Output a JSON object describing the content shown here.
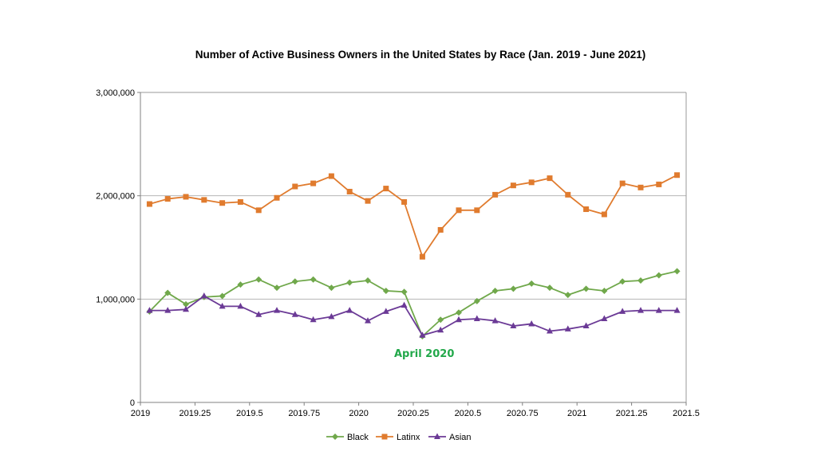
{
  "chart_data": {
    "type": "line",
    "title": "Number of Active Business Owners in the United States by Race (Jan. 2019 - June 2021)",
    "xlim": [
      2019,
      2021.5
    ],
    "ylim": [
      0,
      3000000
    ],
    "xticks": [
      "2019",
      "2019.25",
      "2019.5",
      "2019.75",
      "2020",
      "2020.25",
      "2020.5",
      "2020.75",
      "2021",
      "2021.25",
      "2021.5"
    ],
    "xtick_values": [
      2019,
      2019.25,
      2019.5,
      2019.75,
      2020,
      2020.25,
      2020.5,
      2020.75,
      2021,
      2021.25,
      2021.5
    ],
    "yticks": [
      "0",
      "1,000,000",
      "2,000,000",
      "3,000,000"
    ],
    "ytick_values": [
      0,
      1000000,
      2000000,
      3000000
    ],
    "grid": "horizontal",
    "legend_position": "bottom",
    "x": [
      2019.0417,
      2019.125,
      2019.2083,
      2019.2917,
      2019.375,
      2019.4583,
      2019.5417,
      2019.625,
      2019.7083,
      2019.7917,
      2019.875,
      2019.9583,
      2020.0417,
      2020.125,
      2020.2083,
      2020.2917,
      2020.375,
      2020.4583,
      2020.5417,
      2020.625,
      2020.7083,
      2020.7917,
      2020.875,
      2020.9583,
      2021.0417,
      2021.125,
      2021.2083,
      2021.2917,
      2021.375,
      2021.4583
    ],
    "series": [
      {
        "name": "Black",
        "color": "#70a84b",
        "marker": "diamond",
        "values": [
          880000,
          1060000,
          950000,
          1020000,
          1030000,
          1140000,
          1190000,
          1110000,
          1170000,
          1190000,
          1110000,
          1160000,
          1180000,
          1080000,
          1070000,
          640000,
          800000,
          870000,
          980000,
          1080000,
          1100000,
          1150000,
          1110000,
          1040000,
          1100000,
          1080000,
          1170000,
          1180000,
          1230000,
          1270000
        ]
      },
      {
        "name": "Latinx",
        "color": "#e07b2e",
        "marker": "square",
        "values": [
          1920000,
          1970000,
          1990000,
          1960000,
          1930000,
          1940000,
          1860000,
          1980000,
          2090000,
          2120000,
          2190000,
          2040000,
          1950000,
          2070000,
          1940000,
          1410000,
          1670000,
          1860000,
          1860000,
          2010000,
          2100000,
          2130000,
          2170000,
          2010000,
          1870000,
          1820000,
          2120000,
          2080000,
          2110000,
          2200000
        ]
      },
      {
        "name": "Asian",
        "color": "#6b3a96",
        "marker": "triangle",
        "values": [
          890000,
          890000,
          900000,
          1030000,
          930000,
          930000,
          850000,
          890000,
          850000,
          800000,
          830000,
          890000,
          790000,
          880000,
          940000,
          650000,
          700000,
          800000,
          810000,
          790000,
          740000,
          760000,
          690000,
          710000,
          740000,
          810000,
          880000,
          890000,
          890000,
          890000
        ]
      }
    ],
    "annotations": [
      {
        "text": "April 2020",
        "x": 2020.3,
        "y": 440000,
        "color": "#22a84a"
      }
    ]
  }
}
